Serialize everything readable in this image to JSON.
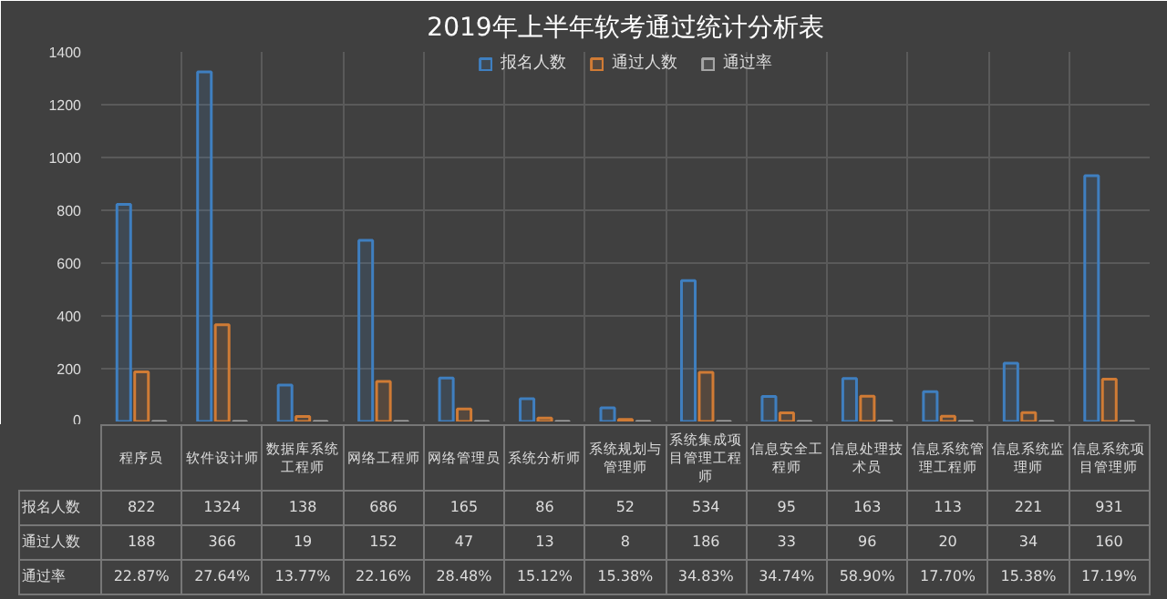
{
  "chart_data": {
    "type": "bar",
    "title": "2019年上半年软考通过统计分析表",
    "categories": [
      "程序员",
      "软件设计师",
      "数据库系统工程师",
      "网络工程师",
      "网络管理员",
      "系统分析师",
      "系统规划与管理师",
      "系统集成项目管理工程师",
      "信息安全工程师",
      "信息处理技术员",
      "信息系统管理工程师",
      "信息系统监理师",
      "信息系统项目管理师"
    ],
    "series": [
      {
        "name": "报名人数",
        "color": "#3f7fc0",
        "values": [
          822,
          1324,
          138,
          686,
          165,
          86,
          52,
          534,
          95,
          163,
          113,
          221,
          931
        ],
        "value_labels": [
          "822",
          "1324",
          "138",
          "686",
          "165",
          "86",
          "52",
          "534",
          "95",
          "163",
          "113",
          "221",
          "931"
        ]
      },
      {
        "name": "通过人数",
        "color": "#d07b35",
        "values": [
          188,
          366,
          19,
          152,
          47,
          13,
          8,
          186,
          33,
          96,
          20,
          34,
          160
        ],
        "value_labels": [
          "188",
          "366",
          "19",
          "152",
          "47",
          "13",
          "8",
          "186",
          "33",
          "96",
          "20",
          "34",
          "160"
        ]
      },
      {
        "name": "通过率",
        "color": "#a5a5a5",
        "values": [
          0.2287,
          0.2764,
          0.1377,
          0.2216,
          0.2848,
          0.1512,
          0.1538,
          0.3483,
          0.3474,
          0.589,
          0.177,
          0.1538,
          0.1719
        ],
        "value_labels": [
          "22.87%",
          "27.64%",
          "13.77%",
          "22.16%",
          "28.48%",
          "15.12%",
          "15.38%",
          "34.83%",
          "34.74%",
          "58.90%",
          "17.70%",
          "15.38%",
          "17.19%"
        ]
      }
    ],
    "ylim": [
      0,
      1400
    ],
    "yticks": [
      0,
      200,
      400,
      600,
      800,
      1000,
      1200,
      1400
    ],
    "grid": true,
    "legend": "top"
  }
}
